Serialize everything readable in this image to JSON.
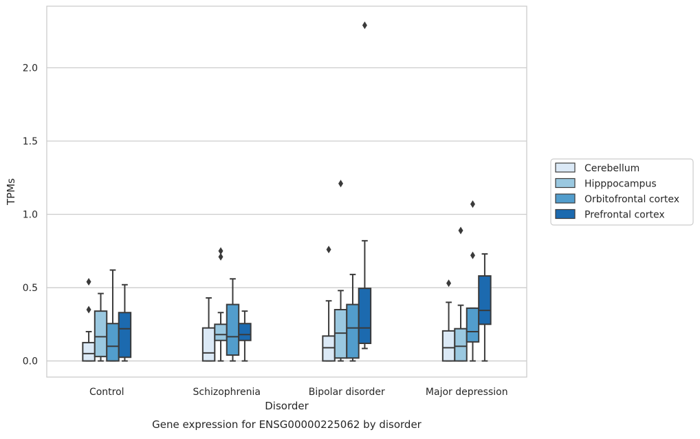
{
  "caption": "Gene expression for ENSG00000225062 by disorder",
  "chart_data": {
    "type": "boxplot",
    "xlabel": "Disorder",
    "ylabel": "TPMs",
    "categories": [
      "Control",
      "Schizophrenia",
      "Bipolar disorder",
      "Major depression"
    ],
    "ylim": [
      -0.11,
      2.42
    ],
    "yticks": [
      "0.0",
      "0.5",
      "1.0",
      "1.5",
      "2.0"
    ],
    "grid": "horizontal",
    "legend_position": "right",
    "series": [
      {
        "name": "Cerebellum",
        "color": "#dbe9f6",
        "boxes": [
          {
            "whislo": 0.0,
            "q1": 0.0,
            "med": 0.05,
            "q3": 0.125,
            "whishi": 0.2,
            "fliers": [
              0.35,
              0.54
            ]
          },
          {
            "whislo": 0.0,
            "q1": 0.0,
            "med": 0.055,
            "q3": 0.225,
            "whishi": 0.43,
            "fliers": []
          },
          {
            "whislo": 0.0,
            "q1": 0.0,
            "med": 0.09,
            "q3": 0.17,
            "whishi": 0.41,
            "fliers": [
              0.76
            ]
          },
          {
            "whislo": 0.0,
            "q1": 0.0,
            "med": 0.09,
            "q3": 0.205,
            "whishi": 0.4,
            "fliers": [
              0.53
            ]
          }
        ]
      },
      {
        "name": "Hipppocampus",
        "color": "#9ac8e0",
        "boxes": [
          {
            "whislo": 0.0,
            "q1": 0.03,
            "med": 0.165,
            "q3": 0.34,
            "whishi": 0.46,
            "fliers": []
          },
          {
            "whislo": 0.0,
            "q1": 0.14,
            "med": 0.18,
            "q3": 0.25,
            "whishi": 0.33,
            "fliers": [
              0.71,
              0.75
            ]
          },
          {
            "whislo": 0.0,
            "q1": 0.02,
            "med": 0.19,
            "q3": 0.35,
            "whishi": 0.48,
            "fliers": [
              1.21
            ]
          },
          {
            "whislo": 0.0,
            "q1": 0.0,
            "med": 0.1,
            "q3": 0.22,
            "whishi": 0.38,
            "fliers": [
              0.89
            ]
          }
        ]
      },
      {
        "name": "Orbitofrontal cortex",
        "color": "#529dcc",
        "boxes": [
          {
            "whislo": 0.0,
            "q1": 0.0,
            "med": 0.1,
            "q3": 0.255,
            "whishi": 0.62,
            "fliers": []
          },
          {
            "whislo": 0.0,
            "q1": 0.04,
            "med": 0.165,
            "q3": 0.385,
            "whishi": 0.56,
            "fliers": []
          },
          {
            "whislo": 0.0,
            "q1": 0.02,
            "med": 0.225,
            "q3": 0.385,
            "whishi": 0.59,
            "fliers": []
          },
          {
            "whislo": 0.0,
            "q1": 0.13,
            "med": 0.2,
            "q3": 0.36,
            "whishi": 0.36,
            "fliers": [
              0.72,
              1.07
            ]
          }
        ]
      },
      {
        "name": "Prefrontal cortex",
        "color": "#1c6aaf",
        "boxes": [
          {
            "whislo": 0.0,
            "q1": 0.025,
            "med": 0.22,
            "q3": 0.33,
            "whishi": 0.52,
            "fliers": []
          },
          {
            "whislo": 0.0,
            "q1": 0.14,
            "med": 0.18,
            "q3": 0.255,
            "whishi": 0.34,
            "fliers": []
          },
          {
            "whislo": 0.085,
            "q1": 0.12,
            "med": 0.225,
            "q3": 0.495,
            "whishi": 0.82,
            "fliers": [
              2.29
            ]
          },
          {
            "whislo": 0.0,
            "q1": 0.25,
            "med": 0.345,
            "q3": 0.58,
            "whishi": 0.73,
            "fliers": []
          }
        ]
      }
    ]
  }
}
